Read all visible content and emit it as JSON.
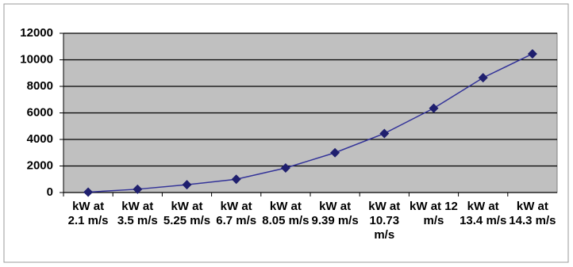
{
  "chart_data": {
    "type": "line",
    "categories": [
      "kW at 2.1 m/s",
      "kW at 3.5 m/s",
      "kW at 5.25 m/s",
      "kW at 6.7 m/s",
      "kW at 8.05 m/s",
      "kW at 9.39 m/s",
      "kW at 10.73 m/s",
      "kW at 12 m/s",
      "kW at 13.4 m/s",
      "kW at 14.3 m/s"
    ],
    "values": [
      30,
      250,
      590,
      1000,
      1850,
      3000,
      4450,
      6350,
      8650,
      10450
    ],
    "color": "#333399",
    "ylim": [
      0,
      12000
    ],
    "yticks": [
      0,
      2000,
      4000,
      6000,
      8000,
      10000,
      12000
    ],
    "grid": true
  }
}
